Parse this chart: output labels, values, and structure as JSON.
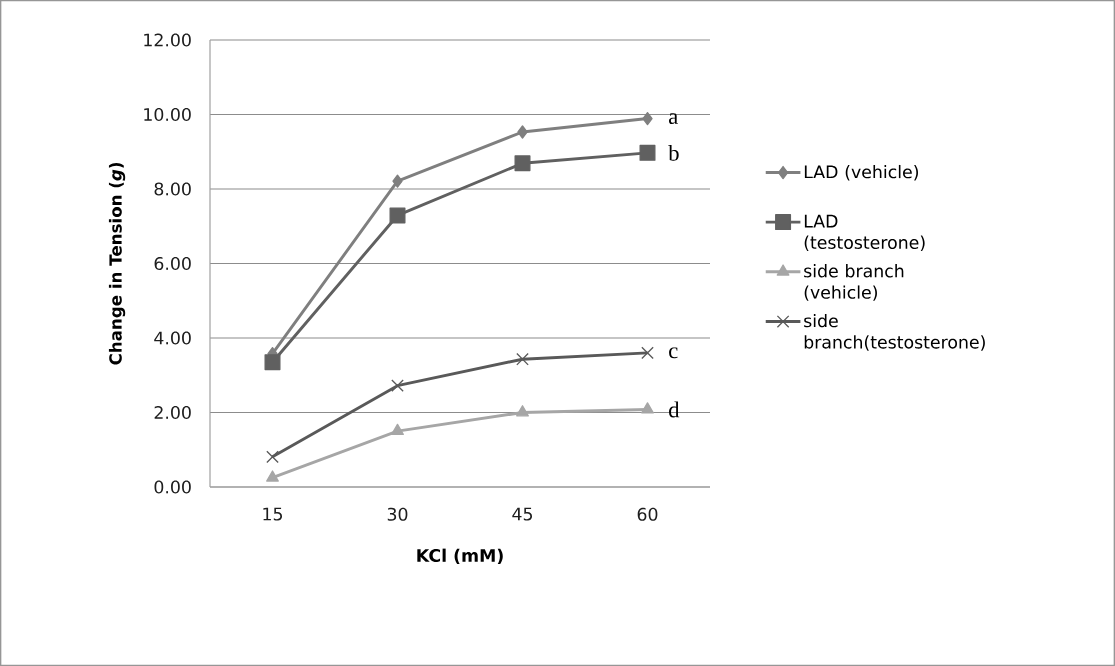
{
  "chart_data": {
    "type": "line",
    "xlabel": "KCl (mM)",
    "ylabel": "Change in Tension  (*g*)",
    "categories": [
      "15",
      "30",
      "45",
      "60"
    ],
    "series": [
      {
        "name": "LAD (vehicle)",
        "color": "#7f7f7f",
        "marker": "diamond",
        "values": [
          3.58,
          8.21,
          9.53,
          9.89
        ]
      },
      {
        "name": "LAD (testosterone)",
        "color": "#606060",
        "marker": "square",
        "values": [
          3.35,
          7.29,
          8.69,
          8.97
        ]
      },
      {
        "name": "side branch (vehicle)",
        "color": "#a6a6a6",
        "marker": "triangle",
        "values": [
          0.25,
          1.5,
          2.0,
          2.08
        ]
      },
      {
        "name": "side branch(testosterone)",
        "color": "#595959",
        "marker": "cross",
        "values": [
          0.81,
          2.72,
          3.43,
          3.6
        ]
      }
    ],
    "ylim": [
      0,
      12
    ],
    "yticks": [
      {
        "value": 0,
        "label": "0.00"
      },
      {
        "value": 2,
        "label": "2.00"
      },
      {
        "value": 4,
        "label": "4.00"
      },
      {
        "value": 6,
        "label": "6.00"
      },
      {
        "value": 8,
        "label": "8.00"
      },
      {
        "value": 10,
        "label": "10.00"
      },
      {
        "value": 12,
        "label": "12.00"
      }
    ],
    "grid": "y",
    "legend": "right",
    "line_style": "solid",
    "annotations": [
      {
        "text": "a",
        "x": "60",
        "y": 9.89
      },
      {
        "text": "b",
        "x": "60",
        "y": 8.97
      },
      {
        "text": "c",
        "x": "60",
        "y": 3.6
      },
      {
        "text": "d",
        "x": "60",
        "y": 2.08
      }
    ]
  }
}
